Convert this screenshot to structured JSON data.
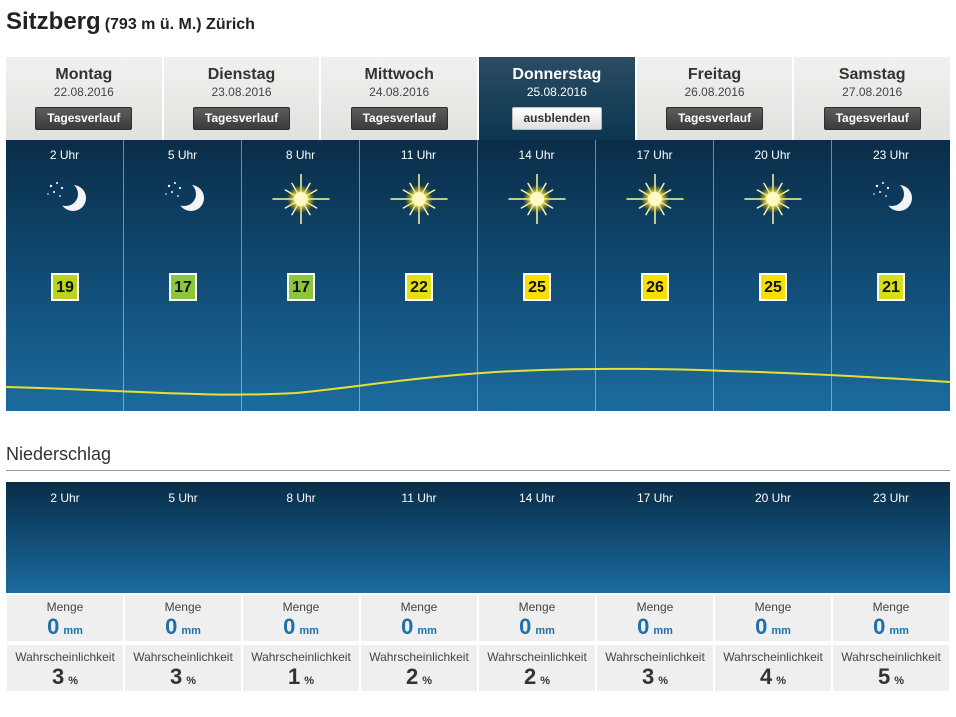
{
  "location": {
    "name": "Sitzberg",
    "detail": "(793 m ü. M.) Zürich"
  },
  "tabs": [
    {
      "day": "Montag",
      "date": "22.08.2016",
      "button": "Tagesverlauf",
      "active": false
    },
    {
      "day": "Dienstag",
      "date": "23.08.2016",
      "button": "Tagesverlauf",
      "active": false
    },
    {
      "day": "Mittwoch",
      "date": "24.08.2016",
      "button": "Tagesverlauf",
      "active": false
    },
    {
      "day": "Donnerstag",
      "date": "25.08.2016",
      "button": "ausblenden",
      "active": true
    },
    {
      "day": "Freitag",
      "date": "26.08.2016",
      "button": "Tagesverlauf",
      "active": false
    },
    {
      "day": "Samstag",
      "date": "27.08.2016",
      "button": "Tagesverlauf",
      "active": false
    }
  ],
  "hourly": [
    {
      "hour": "2 Uhr",
      "icon": "moon-stars-icon",
      "temp": "19",
      "temp_color": "#b9d41a"
    },
    {
      "hour": "5 Uhr",
      "icon": "moon-stars-icon",
      "temp": "17",
      "temp_color": "#8cc63f"
    },
    {
      "hour": "8 Uhr",
      "icon": "sun-icon",
      "temp": "17",
      "temp_color": "#8cc63f"
    },
    {
      "hour": "11 Uhr",
      "icon": "sun-icon",
      "temp": "22",
      "temp_color": "#e4e012"
    },
    {
      "hour": "14 Uhr",
      "icon": "sun-icon",
      "temp": "25",
      "temp_color": "#f7e000"
    },
    {
      "hour": "17 Uhr",
      "icon": "sun-icon",
      "temp": "26",
      "temp_color": "#f7e000"
    },
    {
      "hour": "20 Uhr",
      "icon": "sun-icon",
      "temp": "25",
      "temp_color": "#f7e000"
    },
    {
      "hour": "23 Uhr",
      "icon": "moon-stars-icon",
      "temp": "21",
      "temp_color": "#d7df14"
    }
  ],
  "precipitation": {
    "title": "Niederschlag",
    "menge_label": "Menge",
    "menge_unit": "mm",
    "prob_label": "Wahrscheinlichkeit",
    "prob_unit": "%",
    "values": [
      {
        "hour": "2 Uhr",
        "menge": "0",
        "prob": "3"
      },
      {
        "hour": "5 Uhr",
        "menge": "0",
        "prob": "3"
      },
      {
        "hour": "8 Uhr",
        "menge": "0",
        "prob": "1"
      },
      {
        "hour": "11 Uhr",
        "menge": "0",
        "prob": "2"
      },
      {
        "hour": "14 Uhr",
        "menge": "0",
        "prob": "2"
      },
      {
        "hour": "17 Uhr",
        "menge": "0",
        "prob": "3"
      },
      {
        "hour": "20 Uhr",
        "menge": "0",
        "prob": "4"
      },
      {
        "hour": "23 Uhr",
        "menge": "0",
        "prob": "5"
      }
    ]
  },
  "colors": {
    "accent_blue": "#1f6fa8",
    "curve": "#e8e030"
  }
}
